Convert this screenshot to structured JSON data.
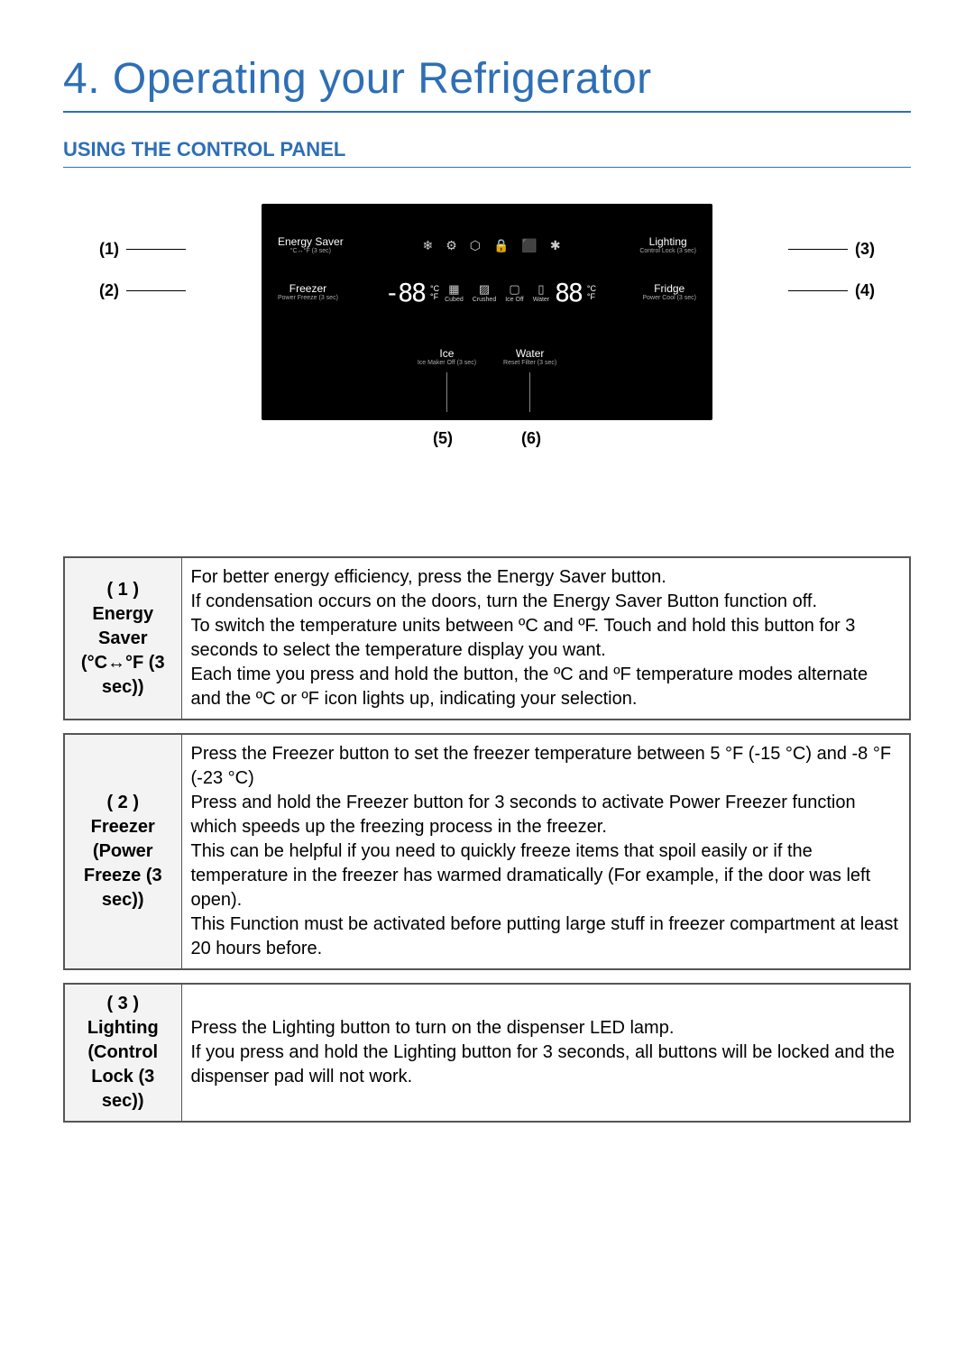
{
  "chapter_title": "4. Operating your Refrigerator",
  "section_title": "USING THE CONTROL PANEL",
  "panel": {
    "row1_left_main": "Energy Saver",
    "row1_left_sub": "°C↔°F (3 sec)",
    "row1_right_main": "Lighting",
    "row1_right_sub": "Control Lock (3 sec)",
    "row2_left_main": "Freezer",
    "row2_left_sub": "Power Freeze (3 sec)",
    "row2_right_main": "Fridge",
    "row2_right_sub": "Power Cool (3 sec)",
    "seg_left": "-88",
    "seg_right": "88",
    "unit_c": "°C",
    "unit_f": "°F",
    "icons_row1": [
      "❄",
      "⚙",
      "⬡",
      "🔒",
      "⬛",
      "✱"
    ],
    "icons_row2_labels": [
      "Cubed",
      "Crushed",
      "Ice Off",
      "Water"
    ],
    "row3_left_main": "Ice",
    "row3_left_sub": "Ice Maker Off (3 sec)",
    "row3_right_main": "Water",
    "row3_right_sub": "Reset Filter (3 sec)"
  },
  "callouts": {
    "c1": "(1)",
    "c2": "(2)",
    "c3": "(3)",
    "c4": "(4)",
    "c5": "(5)",
    "c6": "(6)"
  },
  "tables": [
    {
      "header": "( 1 )\nEnergy Saver (°C↔°F (3 sec))",
      "body": "For better energy efficiency, press the Energy Saver button.\nIf condensation occurs on the doors, turn the Energy Saver Button function off.\nTo switch the temperature units between ºC and ºF. Touch and hold this button for 3 seconds to select the temperature display you want.\nEach time you press and hold the button, the ºC and ºF temperature modes alternate and the ºC or ºF icon lights up, indicating your selection."
    },
    {
      "header": "( 2 )\nFreezer (Power Freeze (3 sec))",
      "body": "Press the Freezer button to set the freezer temperature between 5 °F (-15 °C) and -8 °F (-23 °C)\nPress and hold the Freezer button for 3 seconds to activate Power Freezer function which speeds up the freezing process in the freezer.\nThis can be helpful if you need to quickly freeze items that spoil easily or if the temperature in the freezer has warmed dramatically (For example, if the door was left open).\nThis Function must be activated before putting large stuff in freezer compartment at least 20 hours before."
    },
    {
      "header": "( 3 )\nLighting (Control Lock (3 sec))",
      "body": "Press the Lighting button to turn on the dispenser LED lamp.\nIf you press and hold the Lighting button for 3 seconds, all buttons will be locked and the dispenser pad will not work."
    }
  ],
  "colors": {
    "accent": "#2e6fb5",
    "panel_bg": "#000000",
    "border": "#555555",
    "hdr_bg": "#f3f3f3"
  }
}
